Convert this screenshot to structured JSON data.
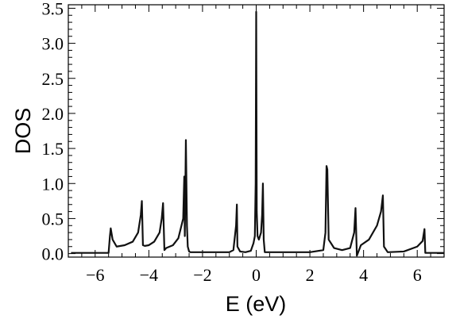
{
  "chart_data": {
    "type": "line",
    "title": "",
    "xlabel": "E (eV)",
    "ylabel": "DOS",
    "xlim": [
      -7.0,
      7.0
    ],
    "ylim": [
      -0.05,
      3.55
    ],
    "x_ticks": [
      -6,
      -4,
      -2,
      0,
      2,
      4,
      6
    ],
    "x_tick_labels": [
      "−6",
      "−4",
      "−2",
      "0",
      "2",
      "4",
      "6"
    ],
    "y_ticks": [
      0.0,
      0.5,
      1.0,
      1.5,
      2.0,
      2.5,
      3.0,
      3.5
    ],
    "y_tick_labels": [
      "0.0",
      "0.5",
      "1.0",
      "1.5",
      "2.0",
      "2.5",
      "3.0",
      "3.5"
    ],
    "grid": false,
    "legend": "none",
    "series": [
      {
        "color": "#111111",
        "x": [
          -6.9,
          -5.5,
          -5.45,
          -5.42,
          -5.35,
          -5.2,
          -4.9,
          -4.6,
          -4.4,
          -4.3,
          -4.26,
          -4.22,
          -4.15,
          -4.0,
          -3.8,
          -3.6,
          -3.52,
          -3.47,
          -3.42,
          -3.35,
          -3.1,
          -2.9,
          -2.72,
          -2.68,
          -2.66,
          -2.62,
          -2.58,
          -2.55,
          -2.5,
          -2.45,
          -2.3,
          -2.0,
          -1.5,
          -1.0,
          -0.85,
          -0.75,
          -0.72,
          -0.7,
          -0.6,
          -0.4,
          -0.2,
          -0.1,
          -0.05,
          -0.02,
          0.0,
          0.02,
          0.05,
          0.1,
          0.18,
          0.22,
          0.25,
          0.28,
          0.32,
          0.5,
          1.0,
          2.0,
          2.5,
          2.58,
          2.62,
          2.65,
          2.7,
          2.9,
          3.2,
          3.5,
          3.65,
          3.7,
          3.75,
          3.9,
          4.2,
          4.5,
          4.65,
          4.72,
          4.76,
          4.9,
          5.5,
          6.0,
          6.2,
          6.27,
          6.3,
          6.35,
          7.0
        ],
        "y": [
          0.01,
          0.01,
          0.25,
          0.36,
          0.2,
          0.1,
          0.12,
          0.17,
          0.3,
          0.55,
          0.75,
          0.12,
          0.11,
          0.12,
          0.17,
          0.3,
          0.5,
          0.72,
          0.05,
          0.08,
          0.12,
          0.22,
          0.5,
          1.1,
          0.25,
          1.62,
          0.4,
          0.1,
          0.03,
          0.02,
          0.02,
          0.02,
          0.02,
          0.02,
          0.05,
          0.4,
          0.7,
          0.1,
          0.03,
          0.02,
          0.04,
          0.15,
          0.25,
          1.0,
          3.45,
          0.6,
          0.25,
          0.2,
          0.3,
          0.55,
          1.0,
          0.2,
          0.02,
          0.02,
          0.02,
          0.02,
          0.05,
          0.3,
          1.25,
          1.2,
          0.2,
          0.08,
          0.05,
          0.08,
          0.3,
          0.65,
          -0.03,
          0.12,
          0.2,
          0.4,
          0.6,
          0.83,
          0.1,
          0.02,
          0.03,
          0.1,
          0.18,
          0.35,
          0.01,
          0.01,
          0.01
        ]
      }
    ]
  }
}
